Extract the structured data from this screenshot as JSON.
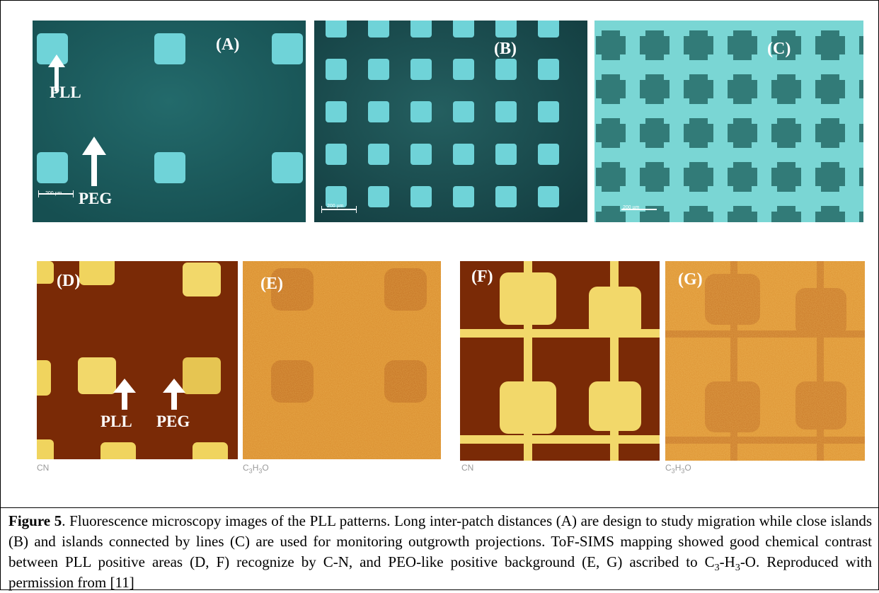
{
  "figure": {
    "fluorescence_panels": [
      {
        "id": "A",
        "label": "(A)",
        "scale_text": "200 µm",
        "pattern": "long inter-patch distances"
      },
      {
        "id": "B",
        "label": "(B)",
        "scale_text": "200 µm",
        "pattern": "close islands"
      },
      {
        "id": "C",
        "label": "(C)",
        "scale_text": "200 µm",
        "pattern": "islands connected by lines"
      }
    ],
    "sims_panels": [
      {
        "id": "D",
        "label": "(D)",
        "ion": "CN"
      },
      {
        "id": "E",
        "label": "(E)",
        "ion": "C3H3O"
      },
      {
        "id": "F",
        "label": "(F)",
        "ion": "CN"
      },
      {
        "id": "G",
        "label": "(G)",
        "ion": "C3H3O"
      }
    ],
    "annotations": {
      "pll": "PLL",
      "peg": "PEG"
    },
    "colors": {
      "fluor_bg": "#1a5a5b",
      "fluor_island": "#6fd3d8",
      "sims_dark": "#7a2a06",
      "sims_bright": "#f2d86a",
      "sims_mid": "#d0862a"
    }
  },
  "caption": {
    "label": "Figure 5",
    "part1": ". Fluorescence microscopy images of the PLL patterns. Long inter-patch distances (A) are design to study migration while close islands (B) and islands connected by lines (C) are used for monitoring outgrowth projections. ToF-SIMS mapping showed good chemical contrast between PLL positive areas (D, F) recognize by C-N, and PEO-like positive background (E, G) ascribed to C",
    "sub1": "3",
    "part2": "-H",
    "sub2": "3",
    "part3": "-O. Reproduced with permission from [11]"
  }
}
